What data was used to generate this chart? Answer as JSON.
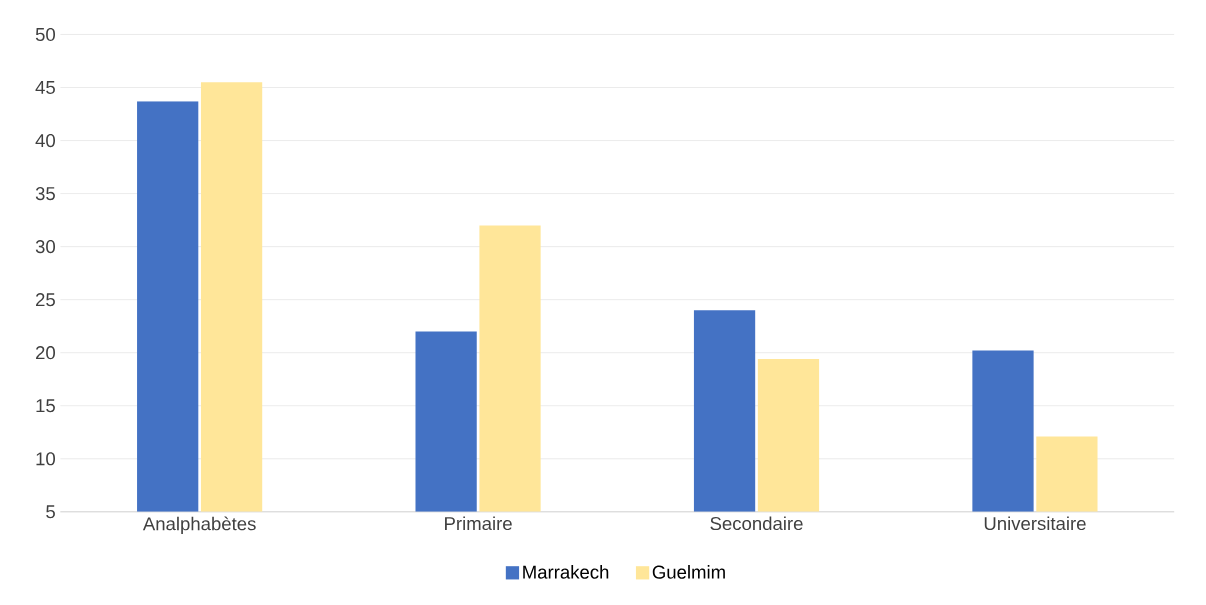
{
  "chart_data": {
    "type": "bar",
    "categories": [
      "Analphabètes",
      "Primaire",
      "Secondaire",
      "Universitaire"
    ],
    "series": [
      {
        "name": "Marrakech",
        "color": "#4472c4",
        "values": [
          43.7,
          22,
          24,
          20.2
        ]
      },
      {
        "name": "Guelmim",
        "color": "#ffe699",
        "values": [
          45.5,
          32,
          19.4,
          12.1
        ]
      }
    ],
    "ylim": [
      5,
      50
    ],
    "yticks": [
      5,
      10,
      15,
      20,
      25,
      30,
      35,
      40,
      45,
      50
    ],
    "grid": "y",
    "legend": "bottom"
  }
}
